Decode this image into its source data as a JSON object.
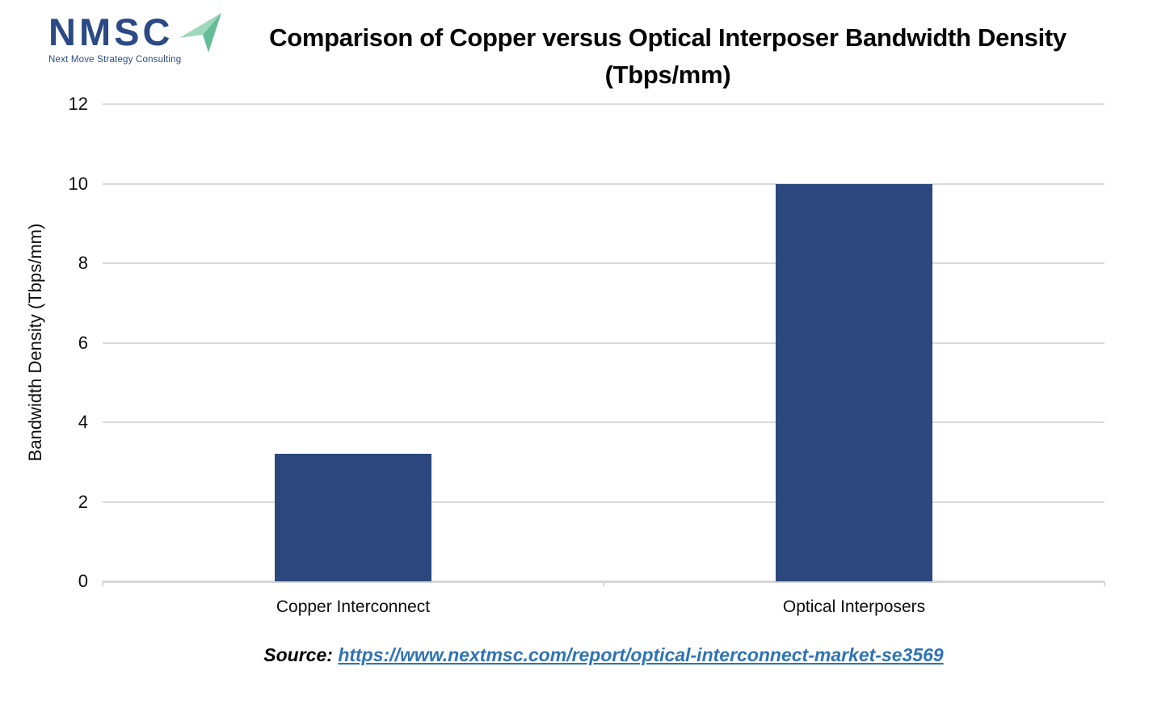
{
  "logo": {
    "acronym": "NMSC",
    "tagline": "Next Move Strategy Consulting",
    "navy_color": "#2B4A85",
    "arrow_light_color": "#9FD8BC",
    "arrow_dark_color": "#63BE97"
  },
  "title_line1": "Comparison of Copper versus Optical Interposer Bandwidth Density",
  "title_line2": "(Tbps/mm)",
  "chart_data": {
    "type": "bar",
    "title": "Comparison of Copper versus Optical Interposer Bandwidth Density (Tbps/mm)",
    "categories": [
      "Copper Interconnect",
      "Optical Interposers"
    ],
    "values": [
      3.2,
      10
    ],
    "xlabel": "",
    "ylabel": "Bandwidth Density (Tbps/mm)",
    "ylim": [
      0,
      12
    ],
    "yticks": [
      0,
      2,
      4,
      6,
      8,
      10,
      12
    ],
    "bar_color": "#2B477D",
    "gridline_color": "#D9D9D9",
    "axis_line_color": "#D6D6D6",
    "grid": true,
    "legend": false
  },
  "source": {
    "prefix": "Source: ",
    "link": "https://www.nextmsc.com/report/optical-interconnect-market-se3569",
    "link_color": "#2E74B5"
  }
}
